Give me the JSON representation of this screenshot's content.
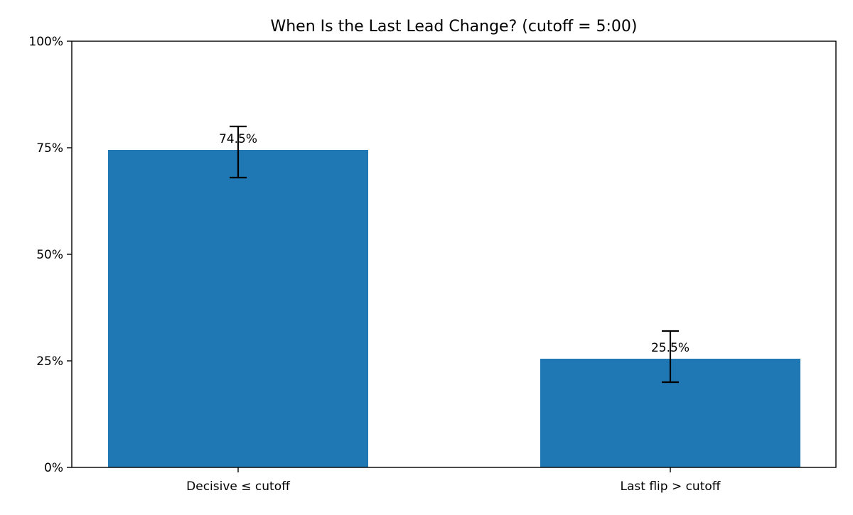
{
  "chart_data": {
    "type": "bar",
    "title": "When Is the Last Lead Change? (cutoff = 5:00)",
    "xlabel": "",
    "ylabel": "",
    "categories": [
      "Decisive ≤ cutoff",
      "Last flip > cutoff"
    ],
    "values": [
      74.5,
      25.5
    ],
    "error_bars": [
      {
        "low": 68,
        "high": 80
      },
      {
        "low": 20,
        "high": 32
      }
    ],
    "data_labels": [
      "74.5%",
      "25.5%"
    ],
    "ylim": [
      0,
      100
    ],
    "yticks": [
      0,
      25,
      50,
      75,
      100
    ],
    "ytick_labels": [
      "0%",
      "25%",
      "50%",
      "75%",
      "100%"
    ],
    "grid": false,
    "bar_color": "#1f77b4",
    "errorbar_color": "#000000"
  }
}
